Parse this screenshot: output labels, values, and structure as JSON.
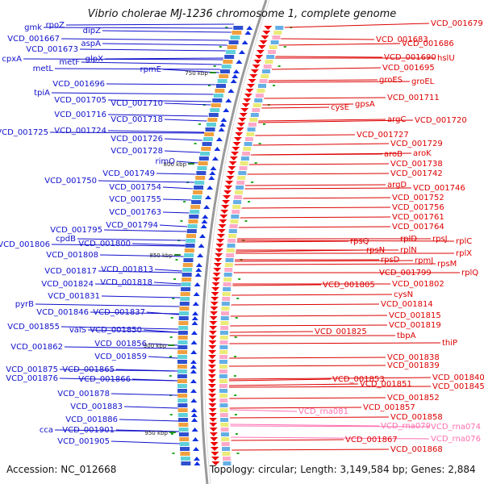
{
  "title": "Vibrio cholerae MJ-1236 chromosome 1, complete genome",
  "footer": {
    "accession": "Accession: NC_012668",
    "topology": "Topology: circular; Length: 3,149,584 bp; Genes: 2,884"
  },
  "colors": {
    "forward": "#1010cc",
    "reverse": "#dd0000",
    "rna": "#ff70b0",
    "backbone": "#9a9a9a",
    "tick": "#228822"
  },
  "ticks": [
    "750 kbp",
    "800 kbp",
    "850 kbp",
    "900 kbp",
    "950 kbp"
  ],
  "left_labels": [
    "rpoZ",
    "gmk",
    "dipZ",
    "VCD_001667",
    "aspA",
    "VCD_001673",
    "glpX",
    "cpxA",
    "metF",
    "metL",
    "rpmE",
    "VCD_001696",
    "tpiA",
    "VCD_001705",
    "VCD_001710",
    "VCD_001716",
    "VCD_001718",
    "VCD_001725",
    "VCD_001724",
    "VCD_001726",
    "VCD_001728",
    "rimO",
    "VCD_001749",
    "VCD_001750",
    "VCD_001754",
    "VCD_001755",
    "VCD_001763",
    "VCD_001794",
    "VCD_001795",
    "cpdB",
    "VCD_001806",
    "VCD_001800",
    "VCD_001808",
    "VCD_001813",
    "VCD_001817",
    "VCD_001818",
    "VCD_001824",
    "VCD_001831",
    "pyrB",
    "VCD_001846",
    "VCD_001837",
    "VCD_001855",
    "valS",
    "VCD_001850",
    "VCD_001862",
    "VCD_001856",
    "VCD_001859",
    "VCD_001875",
    "VCD_001865",
    "VCD_001876",
    "VCD_001866",
    "VCD_001878",
    "VCD_001883",
    "VCD_001886",
    "cca",
    "VCD_001901",
    "VCD_001905"
  ],
  "right_labels": [
    "VCD_001679",
    "VCD_001683",
    "VCD_001686",
    "VCD_001690",
    "hslU",
    "VCD_001695",
    "groES",
    "groEL",
    "VCD_001711",
    "gpsA",
    "cysE",
    "argC",
    "VCD_001720",
    "VCD_001727",
    "VCD_001729",
    "aroB",
    "aroK",
    "VCD_001738",
    "VCD_001742",
    "argD",
    "VCD_001746",
    "VCD_001752",
    "VCD_001756",
    "VCD_001761",
    "VCD_001764",
    "rplD",
    "rpsJ",
    "rplC",
    "rpsQ",
    "rplN",
    "rplX",
    "rpsN",
    "rpsD",
    "rpmJ",
    "rpsM",
    "VCD_001799",
    "rplQ",
    "VCD_001805",
    "VCD_001802",
    "cysN",
    "VCD_001814",
    "VCD_001815",
    "VCD_001819",
    "VCD_001825",
    "tbpA",
    "thiP",
    "VCD_001838",
    "VCD_001839",
    "VCD_001840",
    "VCD_001853",
    "VCD_001851",
    "VCD_001845",
    "VCD_001852",
    "VCD_001857",
    "VCD_001858",
    "VCD_001867",
    "VCD_001868"
  ],
  "rna_labels": [
    "VCD_rna081",
    "VCD_rna079",
    "VCD_rna074",
    "VCD_rna076"
  ]
}
